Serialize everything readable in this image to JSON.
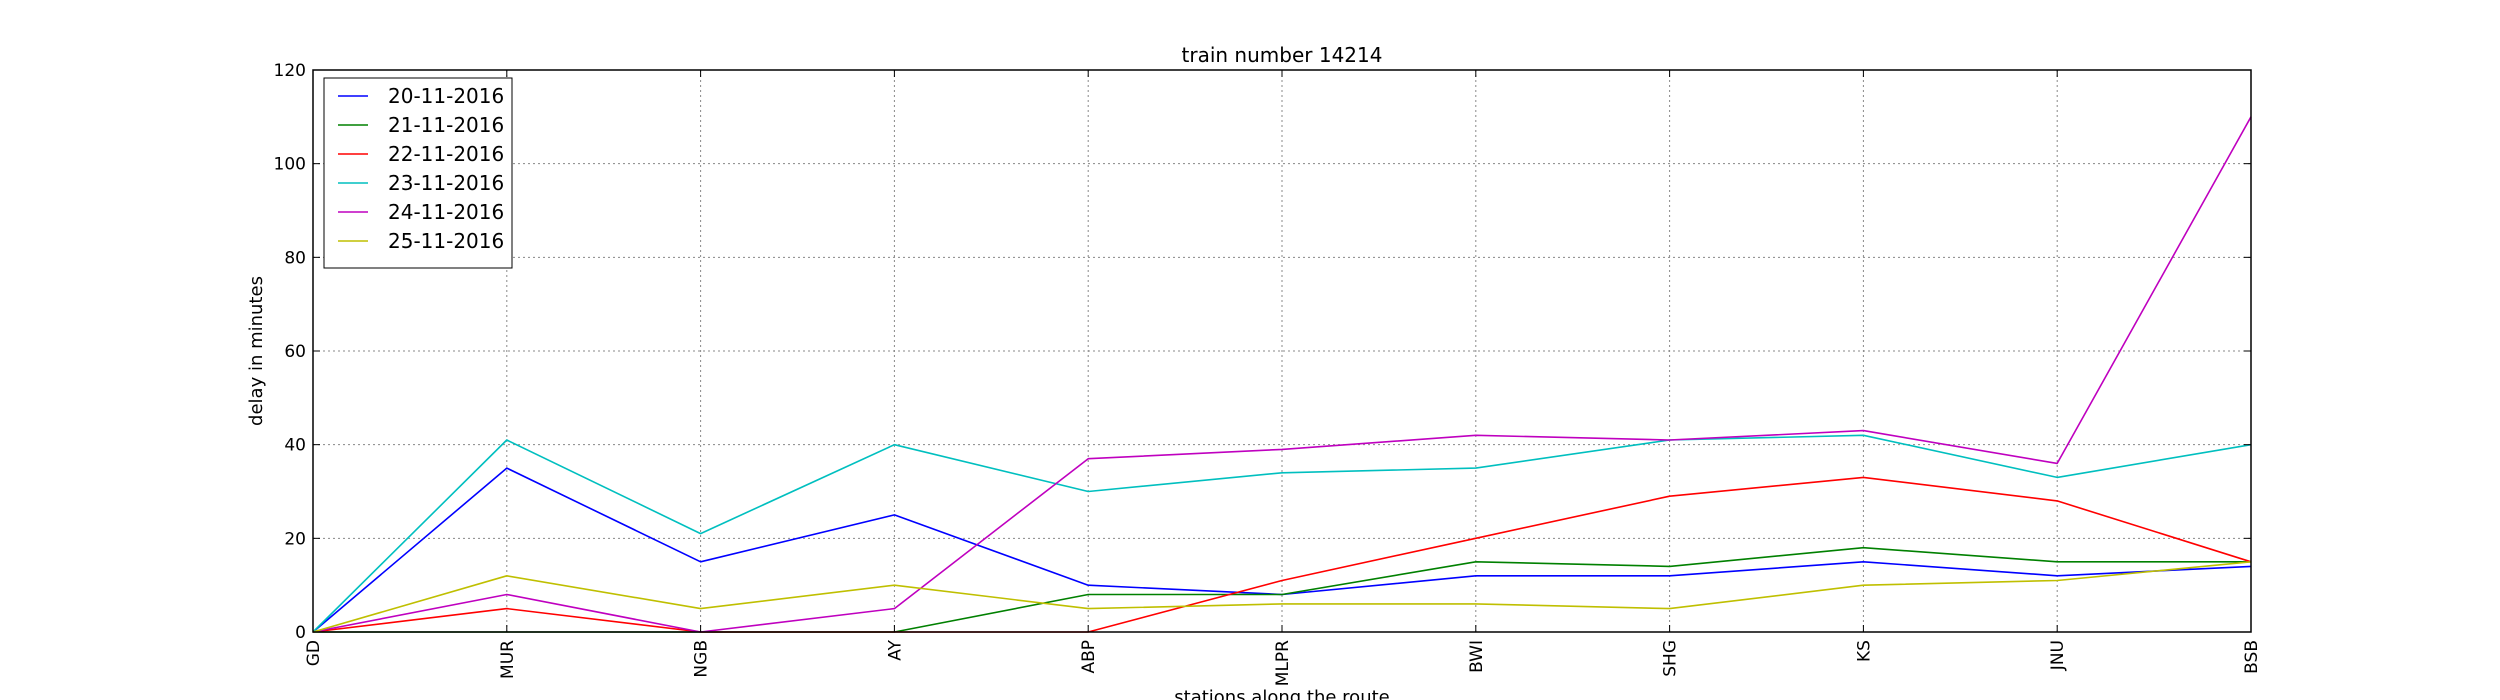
{
  "chart_data": {
    "type": "line",
    "title": "train number 14214",
    "xlabel": "stations along the route",
    "ylabel": "delay in minutes",
    "categories": [
      "GD",
      "MUR",
      "NGB",
      "AY",
      "ABP",
      "MLPR",
      "BWI",
      "SHG",
      "KS",
      "JNU",
      "BSB"
    ],
    "ylim": [
      0,
      120
    ],
    "yticks": [
      0,
      20,
      40,
      60,
      80,
      100,
      120
    ],
    "grid": true,
    "legend_position": "top-left",
    "series": [
      {
        "name": "20-11-2016",
        "color": "#0000ff",
        "values": [
          0,
          35,
          15,
          25,
          10,
          8,
          12,
          12,
          15,
          12,
          14
        ]
      },
      {
        "name": "21-11-2016",
        "color": "#008000",
        "values": [
          0,
          0,
          0,
          0,
          8,
          8,
          15,
          14,
          18,
          15,
          15
        ]
      },
      {
        "name": "22-11-2016",
        "color": "#ff0000",
        "values": [
          0,
          5,
          0,
          0,
          0,
          11,
          20,
          29,
          33,
          28,
          15
        ]
      },
      {
        "name": "23-11-2016",
        "color": "#00bfbf",
        "values": [
          0,
          41,
          21,
          40,
          30,
          34,
          35,
          41,
          42,
          33,
          40
        ]
      },
      {
        "name": "24-11-2016",
        "color": "#bf00bf",
        "values": [
          0,
          8,
          0,
          5,
          37,
          39,
          42,
          41,
          43,
          36,
          110
        ]
      },
      {
        "name": "25-11-2016",
        "color": "#bfbf00",
        "values": [
          0,
          12,
          5,
          10,
          5,
          6,
          6,
          5,
          10,
          11,
          15
        ]
      }
    ]
  }
}
